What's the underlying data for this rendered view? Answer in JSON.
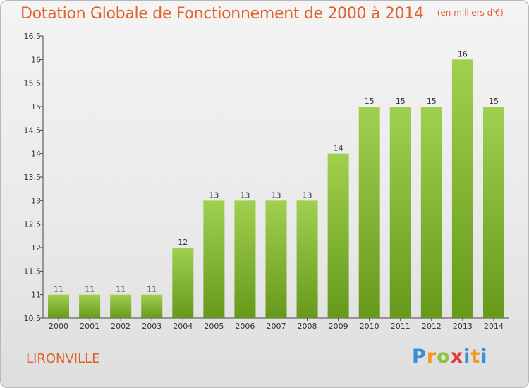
{
  "header": {
    "title": "Dotation Globale de Fonctionnement de 2000 à 2014",
    "unit": "(en milliers d'€)"
  },
  "footer": {
    "commune": "LIRONVILLE",
    "brand": "Proxiti"
  },
  "colors": {
    "title": "#e0612a",
    "bar_light": "#9ccc4a",
    "bar_dark": "#6a9e1a"
  },
  "chart_data": {
    "type": "bar",
    "categories": [
      "2000",
      "2001",
      "2002",
      "2003",
      "2004",
      "2005",
      "2006",
      "2007",
      "2008",
      "2009",
      "2010",
      "2011",
      "2012",
      "2013",
      "2014"
    ],
    "values": [
      11,
      11,
      11,
      11,
      12,
      13,
      13,
      13,
      13,
      14,
      15,
      15,
      15,
      16,
      15
    ],
    "value_labels": [
      "11",
      "11",
      "11",
      "11",
      "12",
      "13",
      "13",
      "13",
      "13",
      "14",
      "15",
      "15",
      "15",
      "16",
      "15"
    ],
    "title": "Dotation Globale de Fonctionnement de 2000 à 2014",
    "xlabel": "",
    "ylabel": "",
    "ylim": [
      10.5,
      16.5
    ],
    "yticks": [
      10.5,
      11,
      11.5,
      12,
      12.5,
      13,
      13.5,
      14,
      14.5,
      15,
      15.5,
      16,
      16.5
    ],
    "ytick_labels": [
      "10.5",
      "11",
      "11.5",
      "12",
      "12.5",
      "13",
      "13.5",
      "14",
      "14.5",
      "15",
      "15.5",
      "16",
      "16.5"
    ],
    "grid": false,
    "legend": "none"
  }
}
